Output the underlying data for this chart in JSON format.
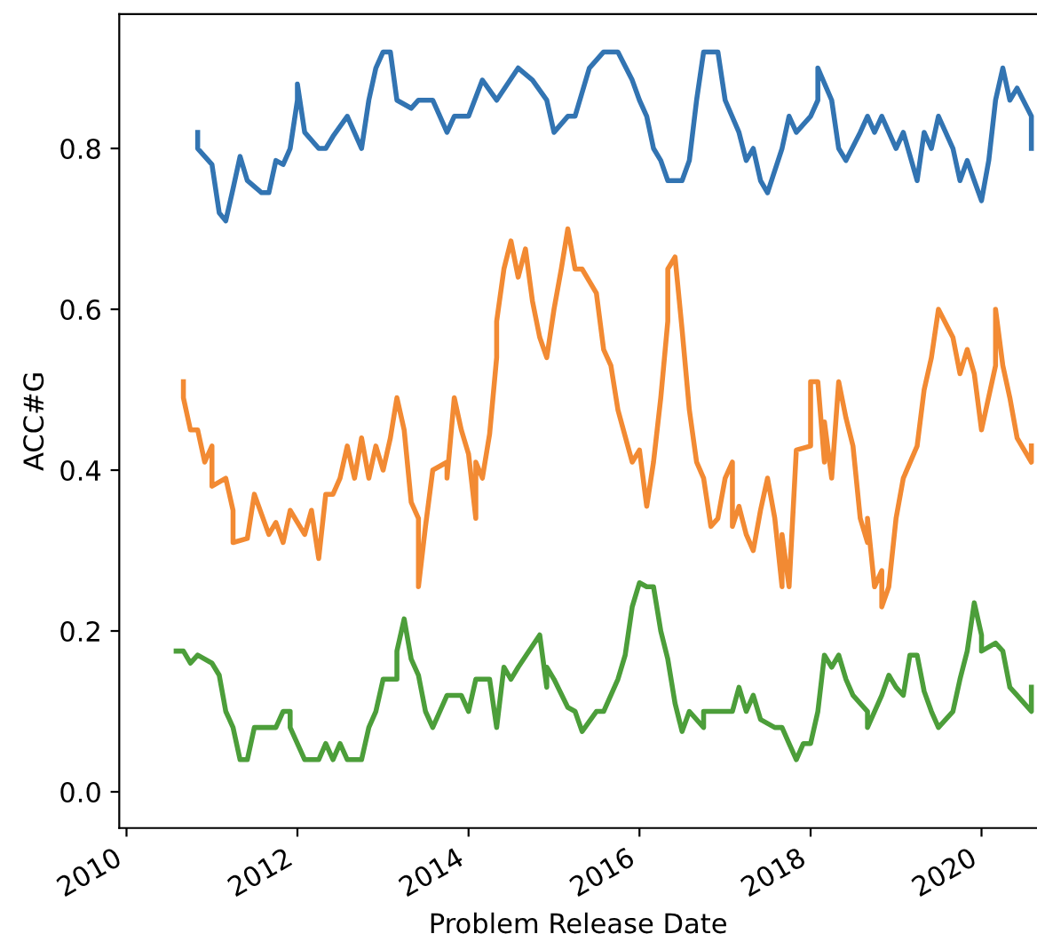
{
  "chart_data": {
    "type": "line",
    "xlabel": "Problem Release Date",
    "ylabel": "ACC#G",
    "xlim": [
      "2009-12-01",
      "2020-08-25"
    ],
    "ylim": [
      -0.045,
      0.967
    ],
    "xticks": [
      {
        "value": "2010-01-01",
        "label": "2010"
      },
      {
        "value": "2012-01-01",
        "label": "2012"
      },
      {
        "value": "2014-01-01",
        "label": "2014"
      },
      {
        "value": "2016-01-01",
        "label": "2016"
      },
      {
        "value": "2018-01-01",
        "label": "2018"
      },
      {
        "value": "2020-01-01",
        "label": "2020"
      }
    ],
    "yticks": [
      {
        "value": 0,
        "label": "0.0"
      },
      {
        "value": 0.2,
        "label": "0.2"
      },
      {
        "value": 0.4,
        "label": "0.4"
      },
      {
        "value": 0.6,
        "label": "0.6"
      },
      {
        "value": 0.8,
        "label": "0.8"
      }
    ],
    "grid": false,
    "marker": "none",
    "line_style": "solid",
    "series": [
      {
        "color": "#3274b2",
        "x": [
          "2010-11",
          "2010-11",
          "2011-01",
          "2011-02",
          "2011-03",
          "2011-04",
          "2011-05",
          "2011-06",
          "2011-08",
          "2011-09",
          "2011-10",
          "2011-11",
          "2011-12",
          "2012-01",
          "2012-01",
          "2012-02",
          "2012-04",
          "2012-05",
          "2012-06",
          "2012-08",
          "2012-10",
          "2012-11",
          "2012-12",
          "2013-01",
          "2013-02",
          "2013-03",
          "2013-05",
          "2013-06",
          "2013-08",
          "2013-10",
          "2013-11",
          "2014-01",
          "2014-03",
          "2014-05",
          "2014-08",
          "2014-10",
          "2014-12",
          "2015-01",
          "2015-03",
          "2015-04",
          "2015-06",
          "2015-08",
          "2015-10",
          "2015-12",
          "2016-01",
          "2016-02",
          "2016-03",
          "2016-04",
          "2016-05",
          "2016-07",
          "2016-08",
          "2016-09",
          "2016-10",
          "2016-12",
          "2017-01",
          "2017-03",
          "2017-04",
          "2017-05",
          "2017-06",
          "2017-07",
          "2017-09",
          "2017-10",
          "2017-11",
          "2018-01",
          "2018-02",
          "2018-02",
          "2018-04",
          "2018-05",
          "2018-06",
          "2018-08",
          "2018-09",
          "2018-10",
          "2018-11",
          "2019-01",
          "2019-02",
          "2019-04",
          "2019-05",
          "2019-06",
          "2019-07",
          "2019-09",
          "2019-10",
          "2019-11",
          "2019-12",
          "2020-01",
          "2020-02",
          "2020-03",
          "2020-04",
          "2020-05",
          "2020-06",
          "2020-08",
          "2020-08"
        ],
        "values": [
          0.82,
          0.8,
          0.78,
          0.72,
          0.71,
          0.75,
          0.79,
          0.76,
          0.745,
          0.745,
          0.785,
          0.78,
          0.8,
          0.86,
          0.88,
          0.82,
          0.8,
          0.8,
          0.815,
          0.84,
          0.8,
          0.86,
          0.9,
          0.92,
          0.92,
          0.86,
          0.85,
          0.86,
          0.86,
          0.82,
          0.84,
          0.84,
          0.885,
          0.86,
          0.9,
          0.885,
          0.86,
          0.82,
          0.84,
          0.84,
          0.9,
          0.92,
          0.92,
          0.885,
          0.86,
          0.84,
          0.8,
          0.785,
          0.76,
          0.76,
          0.785,
          0.86,
          0.92,
          0.92,
          0.86,
          0.82,
          0.785,
          0.8,
          0.76,
          0.745,
          0.8,
          0.84,
          0.82,
          0.84,
          0.86,
          0.9,
          0.86,
          0.8,
          0.785,
          0.82,
          0.84,
          0.82,
          0.84,
          0.8,
          0.82,
          0.76,
          0.82,
          0.8,
          0.84,
          0.8,
          0.76,
          0.785,
          0.76,
          0.735,
          0.785,
          0.86,
          0.9,
          0.86,
          0.875,
          0.84,
          0.8
        ]
      },
      {
        "color": "#f28a33",
        "x": [
          "2010-09",
          "2010-09",
          "2010-10",
          "2010-11",
          "2010-12",
          "2011-01",
          "2011-01",
          "2011-03",
          "2011-04",
          "2011-04",
          "2011-06",
          "2011-07",
          "2011-09",
          "2011-10",
          "2011-11",
          "2011-12",
          "2012-02",
          "2012-03",
          "2012-04",
          "2012-05",
          "2012-06",
          "2012-07",
          "2012-08",
          "2012-09",
          "2012-10",
          "2012-11",
          "2012-12",
          "2013-01",
          "2013-02",
          "2013-03",
          "2013-04",
          "2013-05",
          "2013-06",
          "2013-06",
          "2013-07",
          "2013-08",
          "2013-10",
          "2013-10",
          "2013-11",
          "2013-12",
          "2014-01",
          "2014-02",
          "2014-02",
          "2014-03",
          "2014-04",
          "2014-05",
          "2014-05",
          "2014-06",
          "2014-07",
          "2014-08",
          "2014-09",
          "2014-10",
          "2014-11",
          "2014-12",
          "2015-01",
          "2015-02",
          "2015-03",
          "2015-04",
          "2015-05",
          "2015-07",
          "2015-08",
          "2015-09",
          "2015-10",
          "2015-12",
          "2016-01",
          "2016-02",
          "2016-03",
          "2016-04",
          "2016-05",
          "2016-05",
          "2016-06",
          "2016-07",
          "2016-08",
          "2016-09",
          "2016-10",
          "2016-11",
          "2016-12",
          "2017-01",
          "2017-02",
          "2017-02",
          "2017-03",
          "2017-04",
          "2017-05",
          "2017-06",
          "2017-07",
          "2017-08",
          "2017-09",
          "2017-09",
          "2017-10",
          "2017-11",
          "2018-01",
          "2018-01",
          "2018-02",
          "2018-03",
          "2018-03",
          "2018-04",
          "2018-05",
          "2018-06",
          "2018-07",
          "2018-08",
          "2018-09",
          "2018-09",
          "2018-10",
          "2018-11",
          "2018-11",
          "2018-12",
          "2019-01",
          "2019-02",
          "2019-04",
          "2019-05",
          "2019-06",
          "2019-07",
          "2019-09",
          "2019-10",
          "2019-11",
          "2019-12",
          "2020-01",
          "2020-03",
          "2020-03",
          "2020-04",
          "2020-05",
          "2020-06",
          "2020-08",
          "2020-08"
        ],
        "values": [
          0.51,
          0.49,
          0.45,
          0.45,
          0.41,
          0.43,
          0.38,
          0.39,
          0.35,
          0.31,
          0.315,
          0.37,
          0.32,
          0.335,
          0.31,
          0.35,
          0.32,
          0.35,
          0.29,
          0.37,
          0.37,
          0.39,
          0.43,
          0.39,
          0.44,
          0.39,
          0.43,
          0.4,
          0.44,
          0.49,
          0.45,
          0.36,
          0.34,
          0.255,
          0.33,
          0.4,
          0.41,
          0.39,
          0.49,
          0.45,
          0.42,
          0.34,
          0.41,
          0.39,
          0.445,
          0.54,
          0.585,
          0.65,
          0.685,
          0.64,
          0.675,
          0.61,
          0.565,
          0.54,
          0.6,
          0.65,
          0.7,
          0.65,
          0.65,
          0.62,
          0.55,
          0.53,
          0.475,
          0.41,
          0.425,
          0.355,
          0.41,
          0.49,
          0.585,
          0.65,
          0.665,
          0.575,
          0.475,
          0.41,
          0.39,
          0.33,
          0.34,
          0.39,
          0.41,
          0.33,
          0.355,
          0.32,
          0.3,
          0.35,
          0.39,
          0.34,
          0.255,
          0.32,
          0.255,
          0.425,
          0.43,
          0.51,
          0.51,
          0.41,
          0.46,
          0.39,
          0.51,
          0.465,
          0.43,
          0.34,
          0.31,
          0.34,
          0.255,
          0.275,
          0.23,
          0.255,
          0.34,
          0.39,
          0.43,
          0.5,
          0.54,
          0.6,
          0.565,
          0.52,
          0.55,
          0.52,
          0.45,
          0.53,
          0.6,
          0.53,
          0.49,
          0.44,
          0.41,
          0.43
        ]
      },
      {
        "color": "#4c9e3a",
        "x": [
          "2010-08",
          "2010-09",
          "2010-10",
          "2010-11",
          "2011-01",
          "2011-02",
          "2011-03",
          "2011-04",
          "2011-05",
          "2011-06",
          "2011-07",
          "2011-10",
          "2011-11",
          "2011-12",
          "2011-12",
          "2012-02",
          "2012-04",
          "2012-05",
          "2012-06",
          "2012-07",
          "2012-08",
          "2012-10",
          "2012-11",
          "2012-12",
          "2013-01",
          "2013-03",
          "2013-03",
          "2013-04",
          "2013-05",
          "2013-06",
          "2013-07",
          "2013-08",
          "2013-10",
          "2013-12",
          "2014-01",
          "2014-02",
          "2014-04",
          "2014-05",
          "2014-06",
          "2014-07",
          "2014-08",
          "2014-11",
          "2014-12",
          "2014-12",
          "2015-01",
          "2015-03",
          "2015-04",
          "2015-05",
          "2015-07",
          "2015-08",
          "2015-10",
          "2015-11",
          "2015-12",
          "2016-01",
          "2016-02",
          "2016-03",
          "2016-04",
          "2016-05",
          "2016-06",
          "2016-07",
          "2016-08",
          "2016-10",
          "2016-10",
          "2017-02",
          "2017-03",
          "2017-04",
          "2017-05",
          "2017-06",
          "2017-08",
          "2017-09",
          "2017-10",
          "2017-11",
          "2017-12",
          "2018-01",
          "2018-02",
          "2018-03",
          "2018-04",
          "2018-05",
          "2018-06",
          "2018-07",
          "2018-09",
          "2018-09",
          "2018-11",
          "2018-12",
          "2019-01",
          "2019-02",
          "2019-03",
          "2019-04",
          "2019-05",
          "2019-06",
          "2019-07",
          "2019-08",
          "2019-09",
          "2019-10",
          "2019-11",
          "2019-12",
          "2020-01",
          "2020-01",
          "2020-03",
          "2020-04",
          "2020-05",
          "2020-06",
          "2020-08",
          "2020-08"
        ],
        "values": [
          0.175,
          0.175,
          0.16,
          0.17,
          0.16,
          0.145,
          0.1,
          0.08,
          0.04,
          0.04,
          0.08,
          0.08,
          0.1,
          0.1,
          0.08,
          0.04,
          0.04,
          0.06,
          0.04,
          0.06,
          0.04,
          0.04,
          0.08,
          0.1,
          0.14,
          0.14,
          0.175,
          0.215,
          0.165,
          0.145,
          0.1,
          0.08,
          0.12,
          0.12,
          0.1,
          0.14,
          0.14,
          0.08,
          0.155,
          0.14,
          0.155,
          0.195,
          0.13,
          0.155,
          0.14,
          0.105,
          0.1,
          0.075,
          0.1,
          0.1,
          0.14,
          0.17,
          0.23,
          0.26,
          0.255,
          0.255,
          0.2,
          0.165,
          0.11,
          0.075,
          0.1,
          0.08,
          0.1,
          0.1,
          0.13,
          0.1,
          0.12,
          0.09,
          0.08,
          0.08,
          0.06,
          0.04,
          0.06,
          0.06,
          0.1,
          0.17,
          0.155,
          0.17,
          0.14,
          0.12,
          0.1,
          0.08,
          0.12,
          0.145,
          0.13,
          0.12,
          0.17,
          0.17,
          0.125,
          0.1,
          0.08,
          0.09,
          0.1,
          0.14,
          0.175,
          0.235,
          0.195,
          0.175,
          0.185,
          0.175,
          0.13,
          0.12,
          0.1,
          0.13
        ]
      }
    ]
  }
}
